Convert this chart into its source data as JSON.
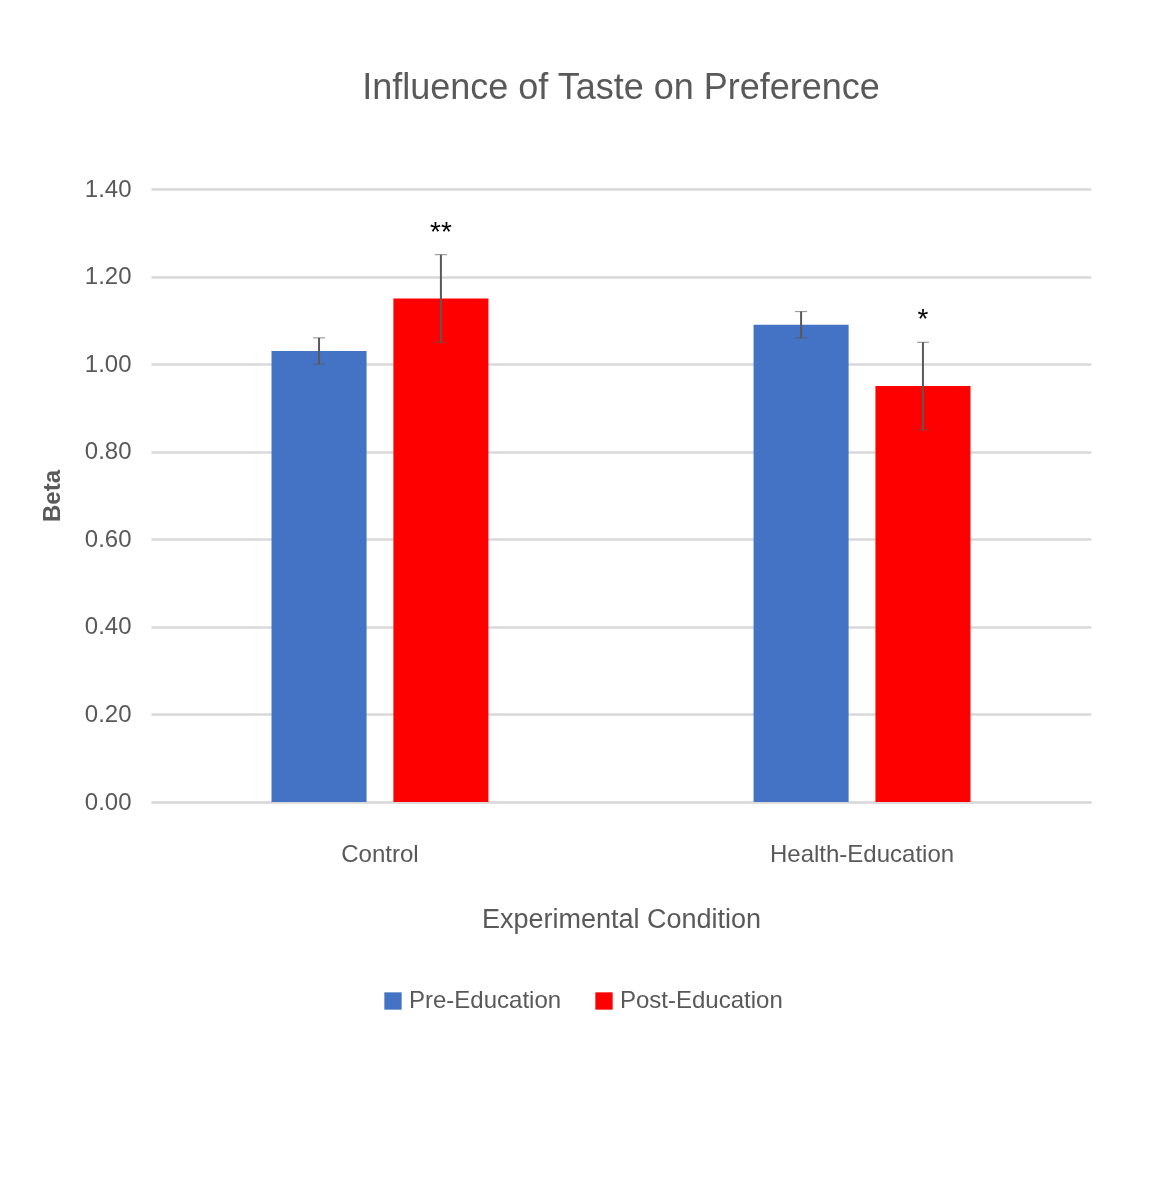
{
  "chart_data": {
    "type": "bar",
    "title": "Influence of Taste on Preference",
    "xlabel": "Experimental Condition",
    "ylabel": "Beta",
    "categories": [
      "Control",
      "Health-Education"
    ],
    "series": [
      {
        "name": "Pre-Education",
        "color": "#4472c4",
        "values": [
          1.03,
          1.09
        ],
        "errors": [
          0.03,
          0.03
        ]
      },
      {
        "name": "Post-Education",
        "color": "#ff0000",
        "values": [
          1.15,
          0.95
        ],
        "errors": [
          0.1,
          0.1
        ]
      }
    ],
    "ylim": [
      0,
      1.4
    ],
    "yticks": [
      {
        "value": 0,
        "label": "0.00"
      },
      {
        "value": 0.2,
        "label": "0.20"
      },
      {
        "value": 0.4,
        "label": "0.40"
      },
      {
        "value": 0.6,
        "label": "0.60"
      },
      {
        "value": 0.8,
        "label": "0.80"
      },
      {
        "value": 1,
        "label": "1.00"
      },
      {
        "value": 1.2,
        "label": "1.20"
      },
      {
        "value": 1.4,
        "label": "1.40"
      }
    ],
    "annotations": [
      "**",
      "*"
    ],
    "grid": "y",
    "legend": "bottom"
  }
}
